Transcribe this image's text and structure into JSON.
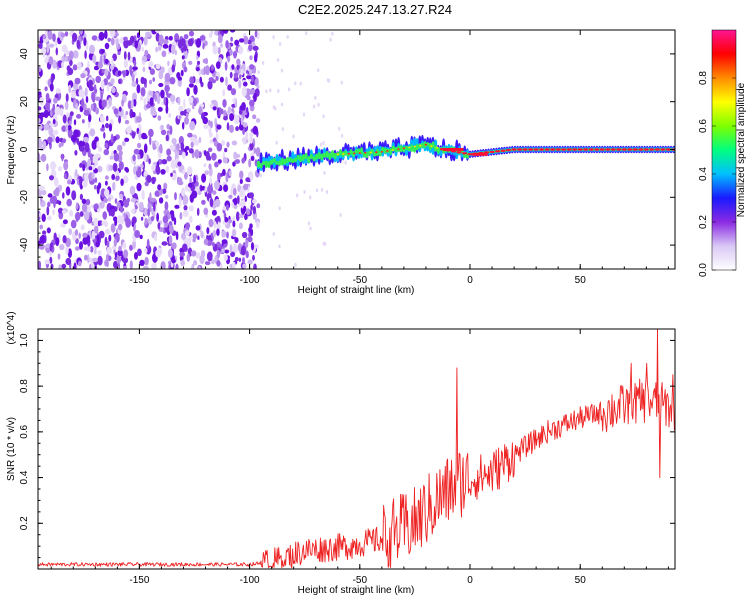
{
  "figure": {
    "title": "C2E2.2025.247.13.27.R24"
  },
  "chart_data": [
    {
      "type": "heatmap",
      "xlabel": "Height of straight line (km)",
      "ylabel": "Frequency (Hz)",
      "xlim": [
        -196,
        93
      ],
      "ylim": [
        -50,
        50
      ],
      "x_ticks": [
        -150,
        -100,
        -50,
        0,
        50
      ],
      "y_ticks": [
        -40,
        -20,
        0,
        20,
        40
      ],
      "colorbar": {
        "label": "Normalized spectral amplitude",
        "range": [
          0.0,
          1.0
        ],
        "ticks": [
          "0.0",
          "0.2",
          "0.4",
          "0.6",
          "0.8"
        ],
        "stops": [
          "#ffffff",
          "#d9c8f5",
          "#8a2be2",
          "#1a1aff",
          "#00bfff",
          "#00ff7f",
          "#7fff00",
          "#ffff00",
          "#ff8c00",
          "#ff0000",
          "#ff1493"
        ]
      },
      "noise_region_x": [
        -196,
        -96
      ],
      "signal_band": [
        {
          "x": -96,
          "freq": -6
        },
        {
          "x": -80,
          "freq": -4
        },
        {
          "x": -60,
          "freq": -2
        },
        {
          "x": -40,
          "freq": -1
        },
        {
          "x": -20,
          "freq": 2
        },
        {
          "x": -12,
          "freq": 0
        },
        {
          "x": 0,
          "freq": -2
        },
        {
          "x": 10,
          "freq": -1
        },
        {
          "x": 20,
          "freq": 0
        },
        {
          "x": 93,
          "freq": 0
        }
      ]
    },
    {
      "type": "line",
      "xlabel": "Height of straight line (km)",
      "ylabel": "SNR (10 * v/v)",
      "y_scale_label": "(x10^4)",
      "xlim": [
        -196,
        93
      ],
      "ylim": [
        0,
        1.05
      ],
      "x_ticks": [
        -150,
        -100,
        -50,
        0,
        50
      ],
      "y_ticks": [
        0.2,
        0.4,
        0.6,
        0.8,
        1.0
      ],
      "series": [
        {
          "name": "SNR",
          "color": "#ee2222",
          "trend": [
            {
              "x": -196,
              "y": 0.02
            },
            {
              "x": -100,
              "y": 0.02
            },
            {
              "x": -90,
              "y": 0.03
            },
            {
              "x": -75,
              "y": 0.08
            },
            {
              "x": -55,
              "y": 0.1
            },
            {
              "x": -40,
              "y": 0.13
            },
            {
              "x": -25,
              "y": 0.2
            },
            {
              "x": -15,
              "y": 0.3
            },
            {
              "x": -5,
              "y": 0.38
            },
            {
              "x": 10,
              "y": 0.42
            },
            {
              "x": 20,
              "y": 0.5
            },
            {
              "x": 35,
              "y": 0.6
            },
            {
              "x": 50,
              "y": 0.66
            },
            {
              "x": 65,
              "y": 0.7
            },
            {
              "x": 80,
              "y": 0.74
            },
            {
              "x": 93,
              "y": 0.7
            }
          ],
          "spikes": [
            {
              "x": -6,
              "y": 0.88
            },
            {
              "x": 73,
              "y": 0.9
            },
            {
              "x": 80,
              "y": 0.9
            },
            {
              "x": 85,
              "y": 1.05
            },
            {
              "x": 86,
              "y": 0.4
            },
            {
              "x": 92,
              "y": 0.85
            }
          ]
        }
      ]
    }
  ]
}
